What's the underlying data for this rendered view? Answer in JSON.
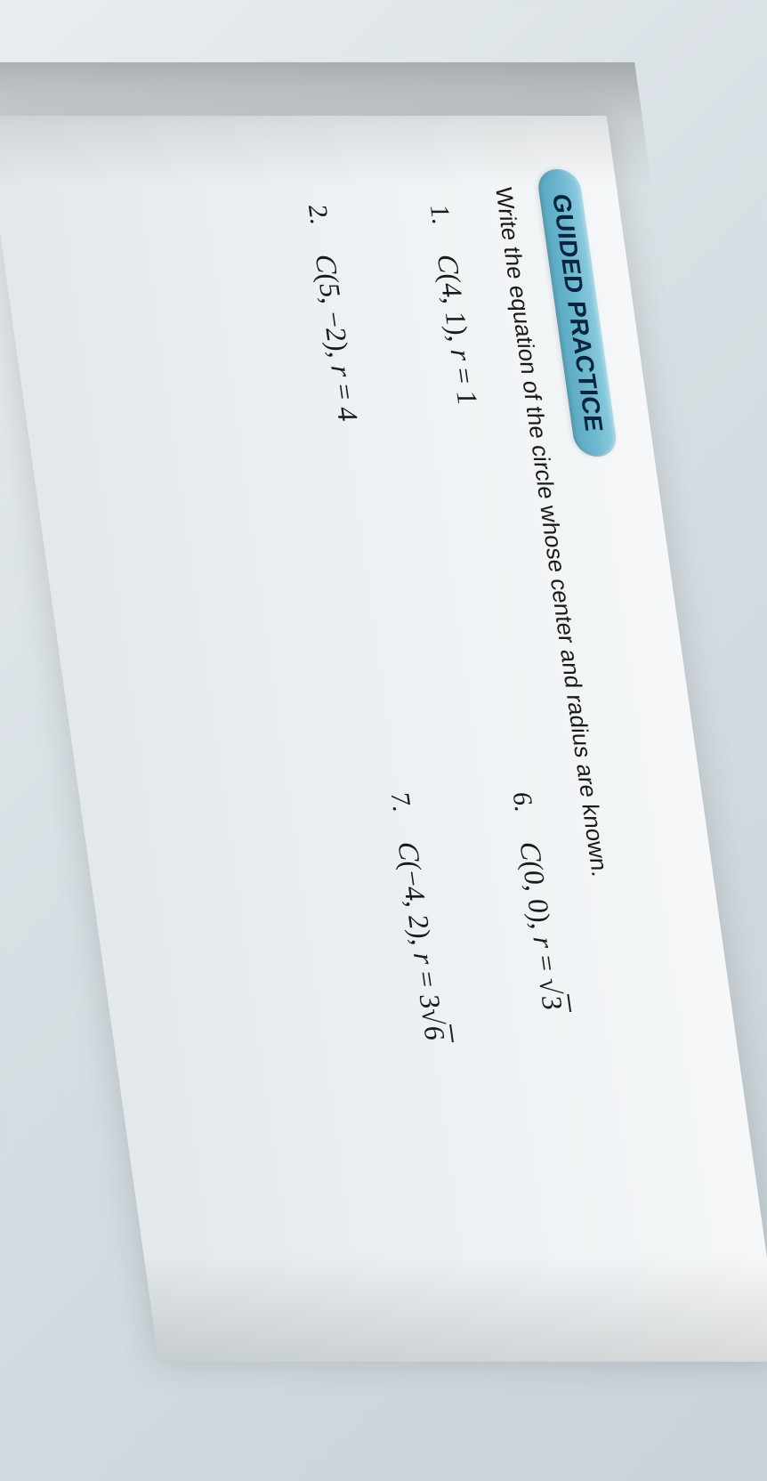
{
  "header": {
    "title": "GUIDED PRACTICE"
  },
  "instruction": "Write the equation of the circle whose center and radius are known.",
  "problems": {
    "col1": [
      {
        "number": "1.",
        "center_label": "C",
        "center": "(4, 1)",
        "r_label": "r",
        "eq": " = ",
        "radius": "1",
        "sqrt_arg": ""
      },
      {
        "number": "2.",
        "center_label": "C",
        "center": "(5, −2)",
        "r_label": "r",
        "eq": " = ",
        "radius": "4",
        "sqrt_arg": ""
      }
    ],
    "col2": [
      {
        "number": "6.",
        "center_label": "C",
        "center": "(0, 0)",
        "r_label": "r",
        "eq": " = ",
        "radius": "",
        "sqrt_arg": "3"
      },
      {
        "number": "7.",
        "center_label": "C",
        "center": "(−4, 2)",
        "r_label": "r",
        "eq": " = ",
        "radius": "3",
        "sqrt_arg": "6"
      }
    ]
  },
  "colors": {
    "pill_gradient_top": "#8fcce0",
    "pill_gradient_mid": "#6db8d0",
    "pill_gradient_bottom": "#5aa8c2",
    "pill_text": "#0a2540",
    "body_text": "#1a1a1a",
    "page_bg_top": "#f5f7f8",
    "page_bg_bottom": "#e2e8eb"
  },
  "typography": {
    "header_fontsize": 28,
    "instruction_fontsize": 26,
    "problem_number_fontsize": 30,
    "problem_text_fontsize": 32,
    "header_weight": "bold"
  },
  "layout": {
    "rotation_deg": 90,
    "skew_deg": -8,
    "columns": 2
  }
}
